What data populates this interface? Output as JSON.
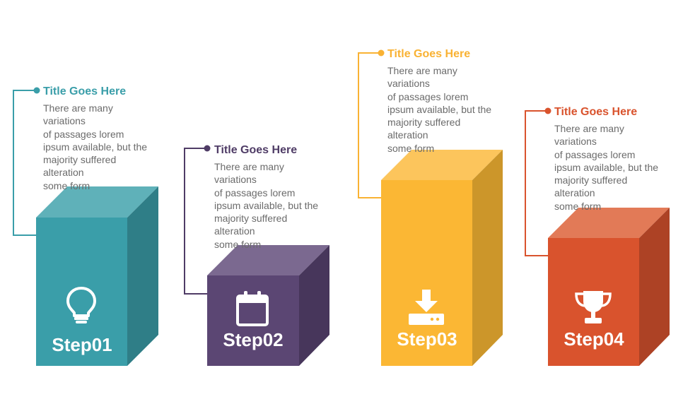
{
  "steps": [
    {
      "label": "Step01",
      "title": "Title Goes Here",
      "description": [
        "There are many",
        "variations",
        "of passages lorem",
        "ipsum available, but the",
        "majority suffered",
        "alteration",
        "some form"
      ],
      "icon": "lightbulb-icon",
      "colors": {
        "front": "#3a9ea9",
        "top": "#5fb1b9",
        "side": "#2f7e87",
        "accent": "#3a9ea9"
      }
    },
    {
      "label": "Step02",
      "title": "Title Goes Here",
      "description": [
        "There are many",
        "variations",
        "of passages lorem",
        "ipsum available, but the",
        "majority suffered",
        "alteration",
        "some form"
      ],
      "icon": "calendar-icon",
      "colors": {
        "front": "#5b4673",
        "top": "#7b6990",
        "side": "#47365b",
        "accent": "#4f3c66"
      }
    },
    {
      "label": "Step03",
      "title": "Title Goes Here",
      "description": [
        "There are many",
        "variations",
        "of passages lorem",
        "ipsum available, but the",
        "majority suffered",
        "alteration",
        "some form"
      ],
      "icon": "download-icon",
      "colors": {
        "front": "#fbb734",
        "top": "#fcc55c",
        "side": "#cc962a",
        "accent": "#f9b233"
      }
    },
    {
      "label": "Step04",
      "title": "Title Goes Here",
      "description": [
        "There are many",
        "variations",
        "of passages lorem",
        "ipsum available, but the",
        "majority suffered",
        "alteration",
        "some form"
      ],
      "icon": "trophy-icon",
      "colors": {
        "front": "#d9532d",
        "top": "#e27a57",
        "side": "#ad4225",
        "accent": "#d9532d"
      }
    }
  ]
}
